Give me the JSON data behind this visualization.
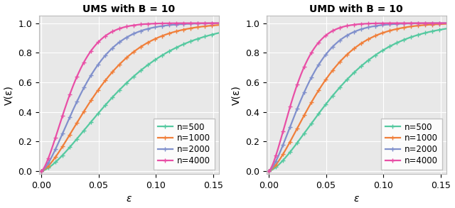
{
  "title_left": "UMS with B = 10",
  "title_right": "UMD with B = 10",
  "xlabel": "ε",
  "ylabel": "V(ε)",
  "xlim": [
    -0.002,
    0.155
  ],
  "ylim": [
    -0.02,
    1.05
  ],
  "xticks": [
    0.0,
    0.05,
    0.1,
    0.15
  ],
  "yticks": [
    0.0,
    0.2,
    0.4,
    0.6,
    0.8,
    1.0
  ],
  "colors": [
    "#55c9a0",
    "#f07f3a",
    "#8090cc",
    "#e84fa6"
  ],
  "labels": [
    "n=500",
    "n=1000",
    "n=2000",
    "n=4000"
  ],
  "n_values": [
    500,
    1000,
    2000,
    4000
  ],
  "B": 10,
  "background_color": "#e8e8e8",
  "marker": "+",
  "markersize": 4,
  "markevery": 20,
  "linewidth": 1.6,
  "ums_scale_c": 0.072,
  "ums_alpha": 0.62,
  "umd_scale_c": 0.058,
  "umd_alpha": 0.62
}
